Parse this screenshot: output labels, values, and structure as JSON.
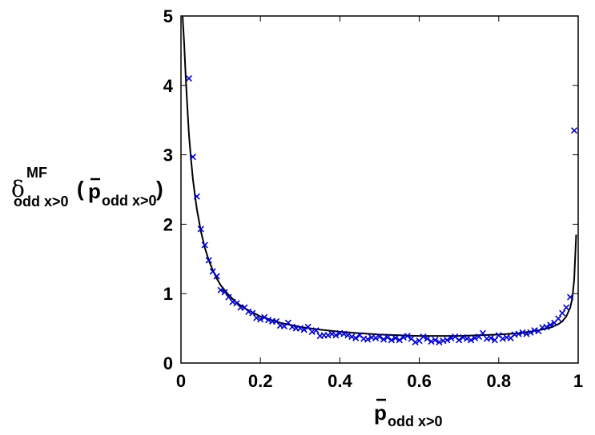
{
  "chart_data": {
    "type": "line",
    "xlim": [
      0,
      1
    ],
    "ylim": [
      0,
      5
    ],
    "x_ticks": [
      "0",
      "0.2",
      "0.4",
      "0.6",
      "0.8",
      "1"
    ],
    "y_ticks": [
      "0",
      "1",
      "2",
      "3",
      "4",
      "5"
    ],
    "xlabel": {
      "main": "p",
      "sub": "odd x>0"
    },
    "ylabel": {
      "symbol": "δ",
      "sup": "MF",
      "sub": "odd x>0",
      "arg_open": "(",
      "arg_main": "p",
      "arg_sub": "odd x>0",
      "arg_close": ")"
    },
    "grid": false,
    "series": [
      {
        "style": "solid black line",
        "color": "#000000",
        "x": [
          0.004,
          0.008,
          0.012,
          0.016,
          0.02,
          0.025,
          0.03,
          0.035,
          0.04,
          0.05,
          0.06,
          0.07,
          0.08,
          0.09,
          0.1,
          0.12,
          0.14,
          0.16,
          0.18,
          0.2,
          0.25,
          0.3,
          0.35,
          0.4,
          0.45,
          0.5,
          0.55,
          0.6,
          0.65,
          0.7,
          0.75,
          0.8,
          0.85,
          0.9,
          0.93,
          0.95,
          0.96,
          0.97,
          0.98,
          0.985,
          0.99,
          0.995
        ],
        "y": [
          5.0,
          4.6,
          4.1,
          3.7,
          3.3,
          2.95,
          2.65,
          2.42,
          2.22,
          1.9,
          1.66,
          1.48,
          1.34,
          1.22,
          1.12,
          0.98,
          0.87,
          0.79,
          0.73,
          0.67,
          0.58,
          0.52,
          0.48,
          0.45,
          0.43,
          0.41,
          0.4,
          0.39,
          0.39,
          0.39,
          0.4,
          0.41,
          0.43,
          0.47,
          0.51,
          0.56,
          0.6,
          0.67,
          0.8,
          0.93,
          1.2,
          1.85
        ]
      },
      {
        "style": "blue x markers",
        "color": "#0000cc",
        "x": [
          0.02,
          0.03,
          0.04,
          0.05,
          0.06,
          0.07,
          0.08,
          0.09,
          0.1,
          0.11,
          0.12,
          0.13,
          0.14,
          0.15,
          0.16,
          0.17,
          0.18,
          0.19,
          0.2,
          0.21,
          0.22,
          0.23,
          0.24,
          0.25,
          0.26,
          0.27,
          0.28,
          0.29,
          0.3,
          0.31,
          0.32,
          0.33,
          0.34,
          0.35,
          0.36,
          0.37,
          0.38,
          0.39,
          0.4,
          0.41,
          0.42,
          0.43,
          0.44,
          0.45,
          0.46,
          0.47,
          0.48,
          0.49,
          0.5,
          0.51,
          0.52,
          0.53,
          0.54,
          0.55,
          0.56,
          0.57,
          0.58,
          0.59,
          0.6,
          0.61,
          0.62,
          0.63,
          0.64,
          0.65,
          0.66,
          0.67,
          0.68,
          0.69,
          0.7,
          0.71,
          0.72,
          0.73,
          0.74,
          0.75,
          0.76,
          0.77,
          0.78,
          0.79,
          0.8,
          0.81,
          0.82,
          0.83,
          0.84,
          0.85,
          0.86,
          0.87,
          0.88,
          0.89,
          0.9,
          0.91,
          0.92,
          0.93,
          0.94,
          0.95,
          0.96,
          0.97,
          0.98,
          0.99
        ],
        "y": [
          4.1,
          2.97,
          2.4,
          1.93,
          1.7,
          1.48,
          1.32,
          1.25,
          1.05,
          1.02,
          0.95,
          0.88,
          0.86,
          0.8,
          0.8,
          0.74,
          0.72,
          0.65,
          0.63,
          0.66,
          0.62,
          0.6,
          0.6,
          0.54,
          0.53,
          0.58,
          0.52,
          0.5,
          0.5,
          0.48,
          0.52,
          0.45,
          0.47,
          0.39,
          0.4,
          0.4,
          0.42,
          0.4,
          0.43,
          0.42,
          0.4,
          0.38,
          0.36,
          0.4,
          0.35,
          0.34,
          0.37,
          0.36,
          0.38,
          0.34,
          0.37,
          0.33,
          0.36,
          0.33,
          0.37,
          0.39,
          0.35,
          0.3,
          0.32,
          0.38,
          0.35,
          0.31,
          0.33,
          0.3,
          0.32,
          0.33,
          0.36,
          0.38,
          0.33,
          0.37,
          0.35,
          0.33,
          0.36,
          0.38,
          0.43,
          0.35,
          0.36,
          0.33,
          0.4,
          0.35,
          0.37,
          0.36,
          0.41,
          0.42,
          0.44,
          0.42,
          0.44,
          0.47,
          0.46,
          0.51,
          0.52,
          0.55,
          0.58,
          0.64,
          0.72,
          0.8,
          0.95,
          3.35
        ]
      }
    ]
  }
}
